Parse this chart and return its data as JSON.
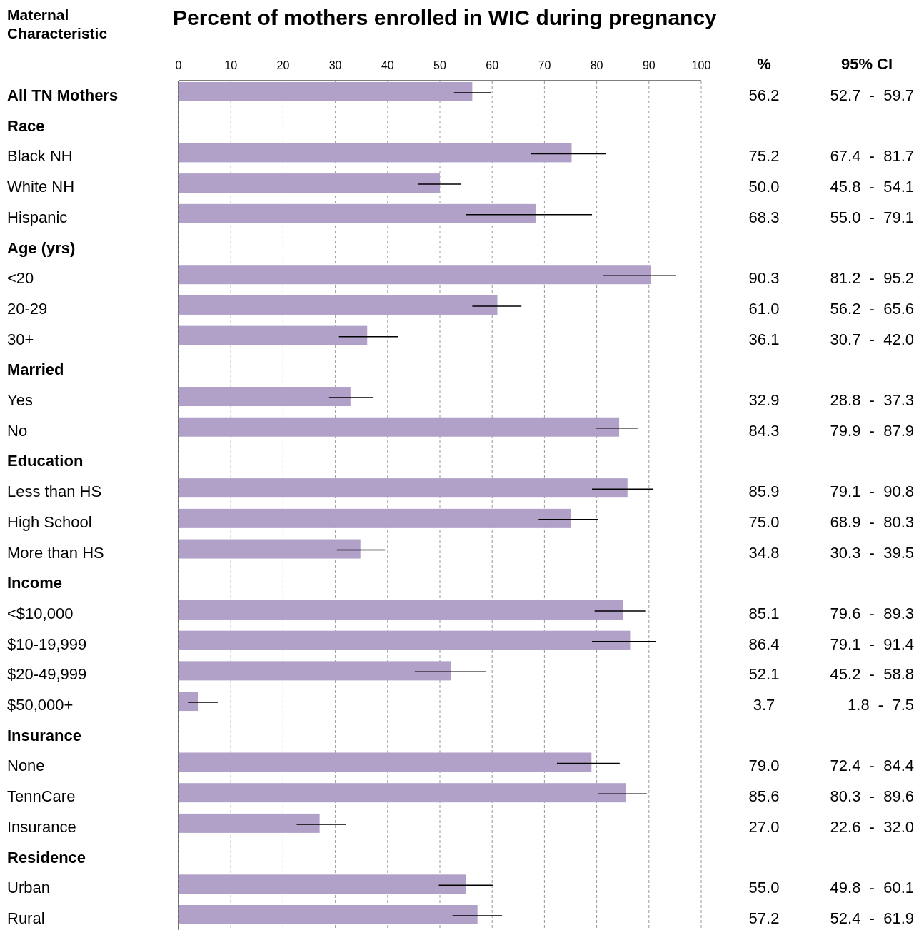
{
  "chart_data": {
    "type": "bar",
    "orientation": "horizontal",
    "title": "Percent of mothers enrolled in WIC during pregnancy",
    "ylabel": "Maternal Characteristic",
    "categories": [
      "All TN Mothers",
      "Race",
      "Black NH",
      "White NH",
      "Hispanic",
      "Age (yrs)",
      "<20",
      "20-29",
      "30+",
      "Married",
      "Yes",
      "No",
      "Education",
      "Less than HS",
      "High School",
      "More than HS",
      "Income",
      "<$10,000",
      "$10-19,999",
      "$20-49,999",
      "$50,000+",
      "Insurance",
      "None",
      "TennCare",
      "Insurance",
      "Residence",
      "Urban",
      "Rural"
    ],
    "values": [
      56.2,
      null,
      75.2,
      50.0,
      68.3,
      null,
      90.3,
      61.0,
      36.1,
      null,
      32.9,
      84.3,
      null,
      85.9,
      75.0,
      34.8,
      null,
      85.1,
      86.4,
      52.1,
      3.7,
      null,
      79.0,
      85.6,
      27.0,
      null,
      55.0,
      57.2
    ],
    "value_labels": [
      "56.2",
      null,
      "75.2",
      "50.0",
      "68.3",
      null,
      "90.3",
      "61.0",
      "36.1",
      null,
      "32.9",
      "84.3",
      null,
      "85.9",
      "75.0",
      "34.8",
      null,
      "85.1",
      "86.4",
      "52.1",
      "3.7",
      null,
      "79.0",
      "85.6",
      "27.0",
      null,
      "55.0",
      "57.2"
    ],
    "errors": [
      [
        52.7,
        59.7
      ],
      null,
      [
        67.4,
        81.7
      ],
      [
        45.8,
        54.1
      ],
      [
        55.0,
        79.1
      ],
      null,
      [
        81.2,
        95.2
      ],
      [
        56.2,
        65.6
      ],
      [
        30.7,
        42.0
      ],
      null,
      [
        28.8,
        37.3
      ],
      [
        79.9,
        87.9
      ],
      null,
      [
        79.1,
        90.8
      ],
      [
        68.9,
        80.3
      ],
      [
        30.3,
        39.5
      ],
      null,
      [
        79.6,
        89.3
      ],
      [
        79.1,
        91.4
      ],
      [
        45.2,
        58.8
      ],
      [
        1.8,
        7.5
      ],
      null,
      [
        72.4,
        84.4
      ],
      [
        80.3,
        89.6
      ],
      [
        22.6,
        32.0
      ],
      null,
      [
        49.8,
        60.1
      ],
      [
        52.4,
        61.9
      ]
    ],
    "color": "#b1a1c9",
    "xlim": [
      0,
      100
    ],
    "xticks": [
      0,
      10,
      20,
      30,
      40,
      50,
      60,
      70,
      80,
      90,
      100
    ],
    "grid": "x",
    "annotations": [
      "%",
      "95% CI",
      "52.7  -  59.7",
      "67.4  -  81.7",
      "45.8  -  54.1",
      "55.0  -  79.1",
      "81.2  -  95.2",
      "56.2  -  65.6",
      "30.7  -  42.0",
      "28.8  -  37.3",
      "79.9  -  87.9",
      "79.1  -  90.8",
      "68.9  -  80.3",
      "30.3  -  39.5",
      "79.6  -  89.3",
      "79.1  -  91.4",
      "45.2  -  58.8",
      "1.8  -  7.5",
      "72.4  -  84.4",
      "80.3  -  89.6",
      "22.6  -  32.0",
      "49.8  -  60.1",
      "52.4  -  61.9"
    ]
  }
}
